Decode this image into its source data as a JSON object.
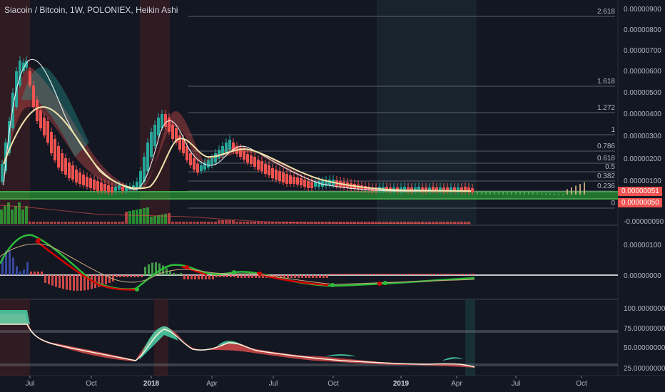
{
  "title": "Siacoin / Bitcoin, 1W, POLONIEX, Heikin Ashi",
  "price_axis": [
    "0.00000900",
    "0.00000800",
    "0.00000700",
    "0.00000600",
    "0.00000500",
    "0.00000400",
    "0.00000300",
    "0.00000200",
    "0.00000100",
    "0.00000000",
    "-0.00000090"
  ],
  "price_badges": [
    "0.00000051",
    "0.00000050"
  ],
  "macd_axis": [
    "0.00000100",
    "0.00000000"
  ],
  "rsi_axis": [
    "100.00000000",
    "75.00000000",
    "50.00000000",
    "25.00000000"
  ],
  "time_axis": [
    {
      "label": "Jul",
      "bold": false
    },
    {
      "label": "Oct",
      "bold": false
    },
    {
      "label": "2018",
      "bold": true
    },
    {
      "label": "Apr",
      "bold": false
    },
    {
      "label": "Jul",
      "bold": false
    },
    {
      "label": "Oct",
      "bold": false
    },
    {
      "label": "2019",
      "bold": true
    },
    {
      "label": "Apr",
      "bold": false
    },
    {
      "label": "Jul",
      "bold": false
    },
    {
      "label": "Oct",
      "bold": false
    }
  ],
  "fib_levels": [
    "2.618",
    "1.618",
    "1.272",
    "1",
    "0.786",
    "0.618",
    "0.5",
    "0.382",
    "0.236",
    "0"
  ],
  "colors": {
    "background": "#131722",
    "up": "#26a69a",
    "down": "#ef5350",
    "highlight_zone": "#2ebd3a",
    "fib_line": "#787b86",
    "ma_line": "#f3e5ab"
  }
}
